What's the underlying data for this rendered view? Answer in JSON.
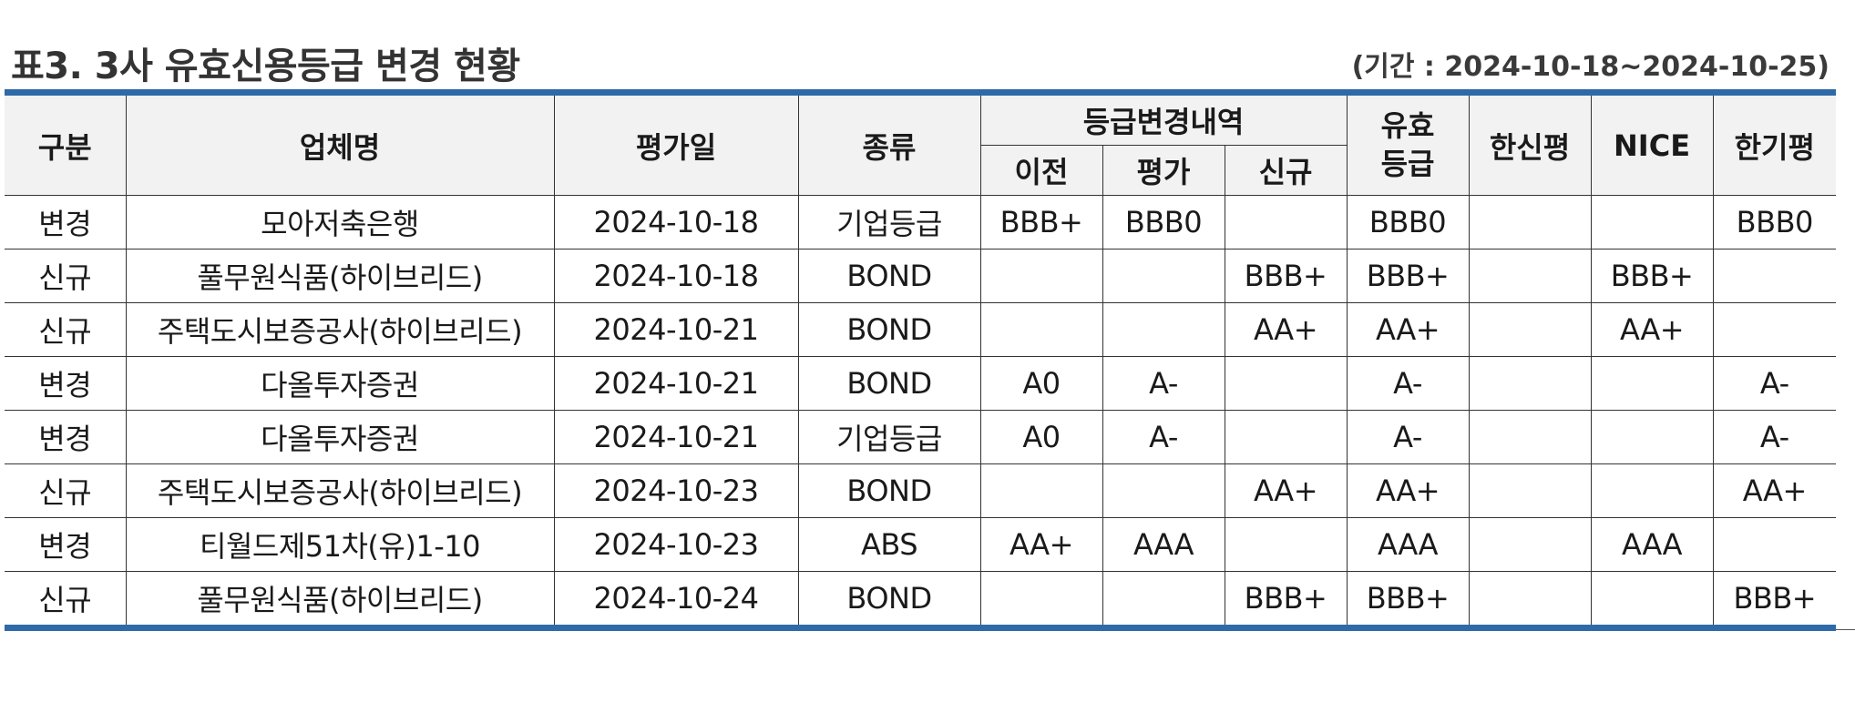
{
  "title": "표3. 3사 유효신용등급 변경 현황",
  "period": "(기간 : 2024-10-18~2024-10-25)",
  "headers": {
    "category": "구분",
    "company": "업체명",
    "eval_date": "평가일",
    "type": "종류",
    "change_history": "등급변경내역",
    "prev": "이전",
    "eval": "평가",
    "new": "신규",
    "effective": "유효\n등급",
    "hanshin": "한신평",
    "nice": "NICE",
    "hangi": "한기평"
  },
  "rows": [
    {
      "category": "변경",
      "company": "모아저축은행",
      "date": "2024-10-18",
      "type": "기업등급",
      "prev": "BBB+",
      "eval": "BBB0",
      "new": "",
      "effective": "BBB0",
      "hanshin": "",
      "nice": "",
      "hangi": "BBB0"
    },
    {
      "category": "신규",
      "company": "풀무원식품(하이브리드)",
      "date": "2024-10-18",
      "type": "BOND",
      "prev": "",
      "eval": "",
      "new": "BBB+",
      "effective": "BBB+",
      "hanshin": "",
      "nice": "BBB+",
      "hangi": ""
    },
    {
      "category": "신규",
      "company": "주택도시보증공사(하이브리드)",
      "date": "2024-10-21",
      "type": "BOND",
      "prev": "",
      "eval": "",
      "new": "AA+",
      "effective": "AA+",
      "hanshin": "",
      "nice": "AA+",
      "hangi": ""
    },
    {
      "category": "변경",
      "company": "다올투자증권",
      "date": "2024-10-21",
      "type": "BOND",
      "prev": "A0",
      "eval": "A-",
      "new": "",
      "effective": "A-",
      "hanshin": "",
      "nice": "",
      "hangi": "A-"
    },
    {
      "category": "변경",
      "company": "다올투자증권",
      "date": "2024-10-21",
      "type": "기업등급",
      "prev": "A0",
      "eval": "A-",
      "new": "",
      "effective": "A-",
      "hanshin": "",
      "nice": "",
      "hangi": "A-"
    },
    {
      "category": "신규",
      "company": "주택도시보증공사(하이브리드)",
      "date": "2024-10-23",
      "type": "BOND",
      "prev": "",
      "eval": "",
      "new": "AA+",
      "effective": "AA+",
      "hanshin": "",
      "nice": "",
      "hangi": "AA+"
    },
    {
      "category": "변경",
      "company": "티월드제51차(유)1-10",
      "date": "2024-10-23",
      "type": "ABS",
      "prev": "AA+",
      "eval": "AAA",
      "new": "",
      "effective": "AAA",
      "hanshin": "",
      "nice": "AAA",
      "hangi": ""
    },
    {
      "category": "신규",
      "company": "풀무원식품(하이브리드)",
      "date": "2024-10-24",
      "type": "BOND",
      "prev": "",
      "eval": "",
      "new": "BBB+",
      "effective": "BBB+",
      "hanshin": "",
      "nice": "",
      "hangi": "BBB+"
    }
  ],
  "colors": {
    "accent_rule": "#2e6aa8",
    "header_bg": "#f2f2f2"
  }
}
